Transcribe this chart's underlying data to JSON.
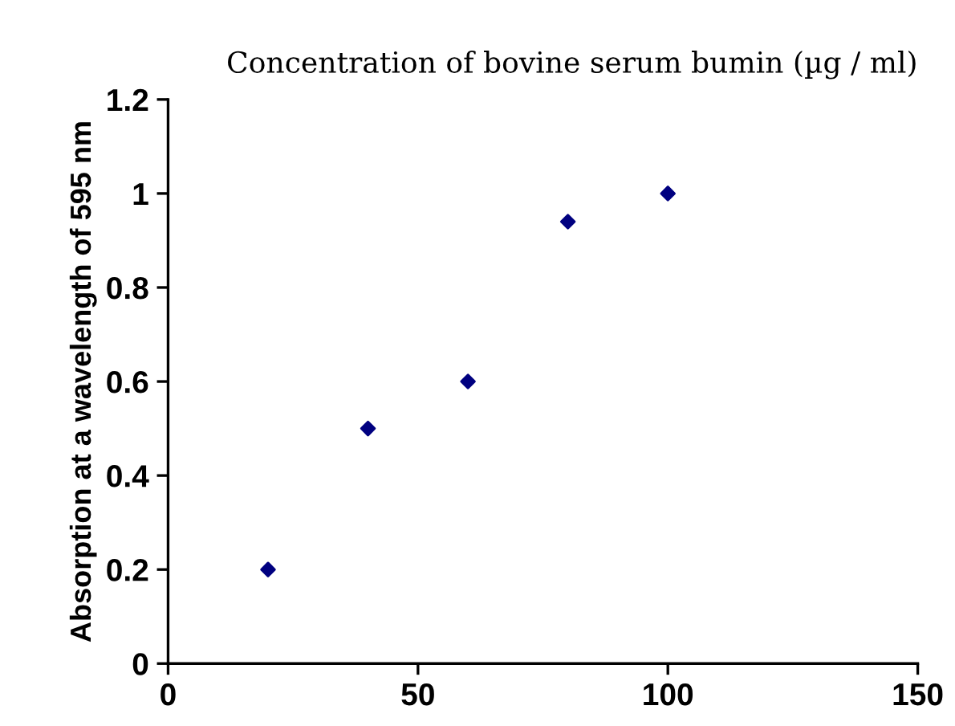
{
  "chart_data": {
    "type": "scatter",
    "xlabel": "Concentration of bovine serum bumin (µg / ml)",
    "ylabel": "Absorption at a wavelength of 595 nm",
    "x": [
      20,
      40,
      60,
      80,
      100
    ],
    "series": [
      {
        "color": "#000080",
        "values": [
          0.2,
          0.5,
          0.6,
          0.94,
          1.0
        ]
      }
    ],
    "marker": "diamond",
    "xlim": [
      0,
      150
    ],
    "xticks": [
      0,
      50,
      100,
      150
    ],
    "ylim": [
      0,
      1.2
    ],
    "yticks": [
      0,
      0.2,
      0.4,
      0.6,
      0.8,
      1,
      1.2
    ],
    "grid": false,
    "legend": false
  }
}
